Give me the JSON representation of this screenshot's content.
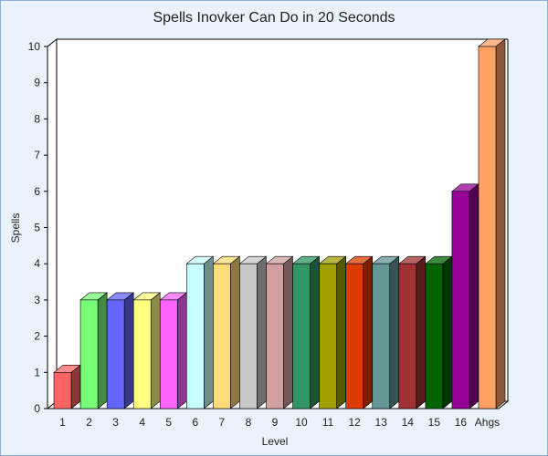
{
  "chart_data": {
    "type": "bar",
    "title": "Spells Inovker Can Do in 20 Seconds",
    "xlabel": "Level",
    "ylabel": "Spells",
    "categories": [
      "1",
      "2",
      "3",
      "4",
      "5",
      "6",
      "7",
      "8",
      "9",
      "10",
      "11",
      "12",
      "13",
      "14",
      "15",
      "16",
      "Ahgs"
    ],
    "values": [
      1,
      3,
      3,
      3,
      3,
      4,
      4,
      4,
      4,
      4,
      4,
      4,
      4,
      4,
      4,
      6,
      10
    ],
    "colors": [
      "#ff6464",
      "#78ff78",
      "#6464ff",
      "#ffff80",
      "#ff64ff",
      "#c8ffff",
      "#ffdc78",
      "#c8c8c8",
      "#d2a0a0",
      "#329664",
      "#a0a000",
      "#dc3c00",
      "#649696",
      "#a03232",
      "#006400",
      "#960096",
      "#ffa064"
    ],
    "ylim": [
      0,
      10
    ],
    "yticks": [
      0,
      1,
      2,
      3,
      4,
      5,
      6,
      7,
      8,
      9,
      10
    ],
    "style": "3d-bar",
    "grid": false,
    "legend": "none"
  }
}
